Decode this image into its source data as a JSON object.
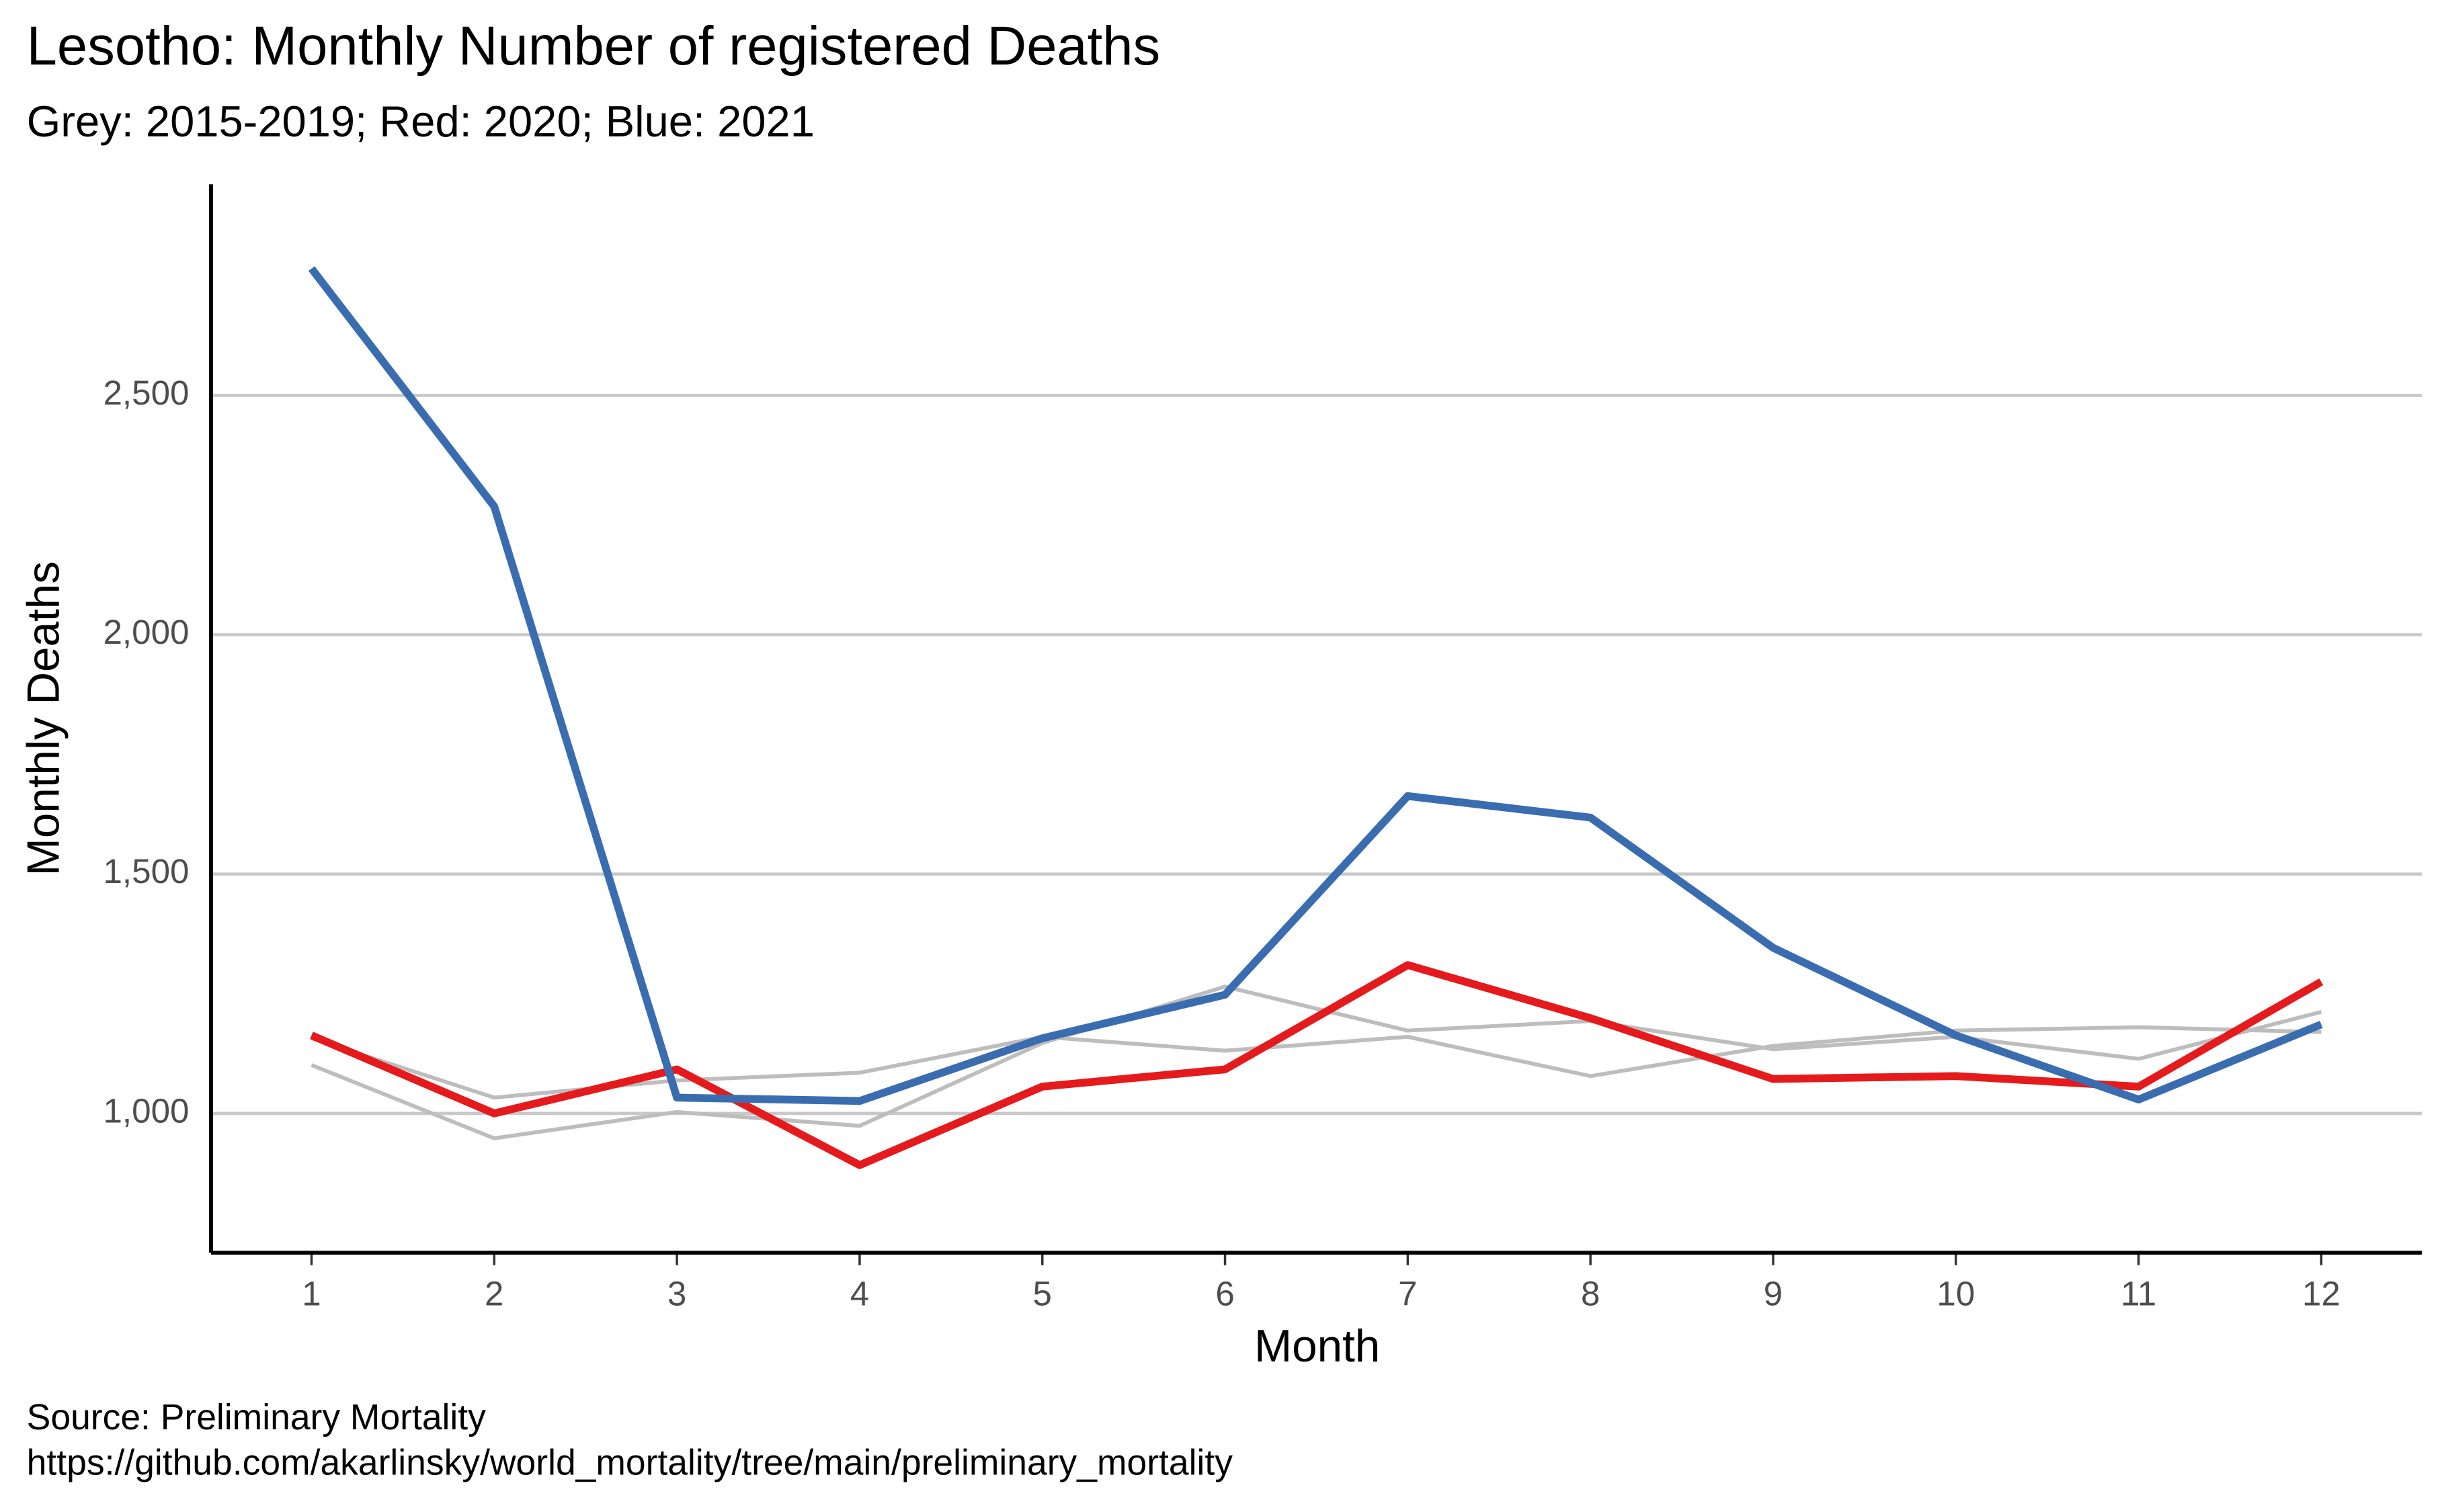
{
  "chart_data": {
    "type": "line",
    "title": "Lesotho: Monthly Number of registered Deaths",
    "subtitle": "Grey: 2015-2019; Red: 2020; Blue: 2021",
    "x_label": "Month",
    "y_label": "Monthly Deaths",
    "caption": [
      "Source: Preliminary Mortality",
      "https://github.com/akarlinsky/world_mortality/tree/main/preliminary_mortality"
    ],
    "x": [
      1,
      2,
      3,
      4,
      5,
      6,
      7,
      8,
      9,
      10,
      11,
      12
    ],
    "xlim": [
      0.45,
      12.55
    ],
    "xticks": [
      1,
      2,
      3,
      4,
      5,
      6,
      7,
      8,
      9,
      10,
      11,
      12
    ],
    "ylim": [
      709,
      2941
    ],
    "yticks": [
      {
        "value": 1000,
        "label": "1,000"
      },
      {
        "value": 1500,
        "label": "1,500"
      },
      {
        "value": 2000,
        "label": "2,000"
      },
      {
        "value": 2500,
        "label": "2,500"
      }
    ],
    "grid": true,
    "series": [
      {
        "color": "#bdbdbd",
        "width": 2.5,
        "values": [
          1101,
          948,
          1003,
          974,
          1147,
          1265,
          1173,
          1193,
          1134,
          1160,
          1114,
          1212
        ]
      },
      {
        "color": "#bdbdbd",
        "width": 2.5,
        "values": [
          1157,
          1033,
          1069,
          1085,
          1160,
          1131,
          1160,
          1078,
          1141,
          1173,
          1180,
          1170
        ]
      },
      {
        "color": "#e41a1c",
        "width": 5,
        "values": [
          1163,
          1000,
          1092,
          892,
          1056,
          1092,
          1310,
          1199,
          1072,
          1078,
          1056,
          1275
        ]
      },
      {
        "color": "#3a6db0",
        "width": 5,
        "values": [
          2765,
          2268,
          1033,
          1026,
          1157,
          1248,
          1663,
          1618,
          1346,
          1163,
          1029,
          1186
        ]
      }
    ]
  }
}
